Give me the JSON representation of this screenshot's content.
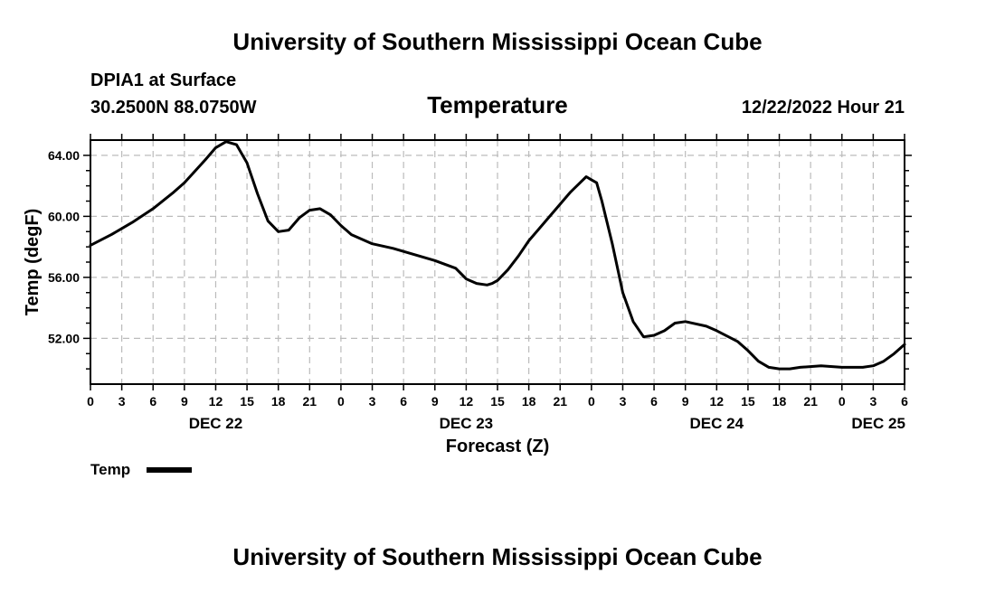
{
  "header": {
    "title": "University of Southern Mississippi Ocean Cube",
    "station": "DPIA1 at Surface",
    "coords": "30.2500N  88.0750W",
    "variable": "Temperature",
    "datetime": "12/22/2022 Hour 21"
  },
  "footer": {
    "title": "University of Southern Mississippi Ocean Cube"
  },
  "colors": {
    "line": "#000000",
    "grid": "#bbbbbb",
    "background": "#ffffff"
  },
  "chart_data": {
    "type": "line",
    "title": "Temperature",
    "xlabel": "Forecast (Z)",
    "ylabel": "Temp (degF)",
    "xlim": [
      0,
      78
    ],
    "ylim": [
      49,
      65
    ],
    "grid": true,
    "legend_position": "bottom-left",
    "x_tick_labels": [
      "0",
      "3",
      "6",
      "9",
      "12",
      "15",
      "18",
      "21",
      "0",
      "3",
      "6",
      "9",
      "12",
      "15",
      "18",
      "21",
      "0",
      "3",
      "6",
      "9",
      "12",
      "15",
      "18",
      "21",
      "0",
      "3",
      "6"
    ],
    "y_ticks": [
      52,
      56,
      60,
      64
    ],
    "y_tick_labels": [
      "52.00",
      "56.00",
      "60.00",
      "64.00"
    ],
    "date_labels": [
      {
        "label": "DEC 22",
        "x": 12
      },
      {
        "label": "DEC 23",
        "x": 36
      },
      {
        "label": "DEC 24",
        "x": 60
      },
      {
        "label": "DEC 25",
        "x": 75.5
      }
    ],
    "series": [
      {
        "name": "Temp",
        "x": [
          0,
          2,
          4,
          6,
          8,
          9,
          11,
          12,
          13,
          13.5,
          14,
          15,
          16,
          17,
          18,
          19,
          20,
          21,
          22,
          23,
          24,
          25,
          27,
          29,
          31,
          33,
          35,
          36,
          37,
          38,
          38.5,
          39,
          40,
          41,
          42,
          44,
          46,
          47.5,
          48,
          48.5,
          49,
          50,
          51,
          52,
          53,
          54,
          55,
          56,
          57,
          59,
          60,
          62,
          63,
          64,
          65,
          66,
          67,
          68,
          70,
          72,
          74,
          75,
          76,
          77,
          78
        ],
        "y": [
          58.1,
          58.8,
          59.6,
          60.5,
          61.6,
          62.2,
          63.7,
          64.5,
          64.9,
          64.8,
          64.7,
          63.5,
          61.5,
          59.7,
          59.0,
          59.1,
          59.9,
          60.4,
          60.5,
          60.1,
          59.4,
          58.8,
          58.2,
          57.9,
          57.5,
          57.1,
          56.6,
          55.9,
          55.6,
          55.5,
          55.6,
          55.8,
          56.5,
          57.4,
          58.4,
          60.0,
          61.6,
          62.6,
          62.4,
          62.2,
          61.0,
          58.2,
          55.0,
          53.1,
          52.1,
          52.2,
          52.5,
          53.0,
          53.1,
          52.8,
          52.5,
          51.8,
          51.2,
          50.5,
          50.1,
          50.0,
          50.0,
          50.1,
          50.2,
          50.1,
          50.1,
          50.2,
          50.5,
          51.0,
          51.6
        ]
      }
    ]
  },
  "legend": {
    "label": "Temp"
  }
}
